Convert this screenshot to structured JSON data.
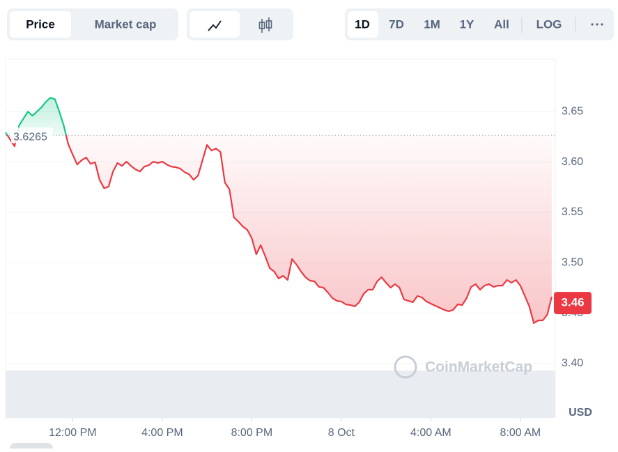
{
  "toolbar": {
    "tabs": [
      "Price",
      "Market cap"
    ],
    "ranges": [
      "1D",
      "7D",
      "1M",
      "1Y",
      "All",
      "LOG"
    ]
  },
  "chart_data": {
    "type": "line",
    "currency": "USD",
    "watermark": "CoinMarketCap",
    "reference": 3.6265,
    "current_price": 3.46,
    "up_color": "#16c784",
    "down_color": "#ea3943",
    "grid": true,
    "xlim": [
      9.0,
      33.56
    ],
    "xticks": [
      {
        "value": 12,
        "label": "12:00 PM"
      },
      {
        "value": 16,
        "label": "4:00 PM"
      },
      {
        "value": 20,
        "label": "8:00 PM"
      },
      {
        "value": 24,
        "label": "8 Oct"
      },
      {
        "value": 28,
        "label": "4:00 AM"
      },
      {
        "value": 32,
        "label": "8:00 AM"
      }
    ],
    "ylim": [
      3.346,
      3.702
    ],
    "yticks": [
      {
        "value": 3.4,
        "label": "3.40"
      },
      3.45,
      {
        "value": 3.5,
        "label": "3.50"
      },
      3.55,
      {
        "value": 3.6,
        "label": "3.60"
      },
      3.65
    ],
    "x": [
      9.0,
      9.2,
      9.4,
      9.6,
      9.8,
      10.0,
      10.2,
      10.4,
      10.6,
      10.8,
      11.0,
      11.2,
      11.4,
      11.6,
      11.8,
      12.0,
      12.2,
      12.4,
      12.6,
      12.8,
      13.0,
      13.2,
      13.4,
      13.6,
      13.8,
      14.0,
      14.2,
      14.4,
      14.6,
      14.8,
      15.0,
      15.2,
      15.4,
      15.6,
      15.8,
      16.0,
      16.2,
      16.4,
      16.6,
      16.8,
      17.0,
      17.2,
      17.4,
      17.6,
      17.8,
      18.0,
      18.2,
      18.4,
      18.6,
      18.8,
      19.0,
      19.2,
      19.4,
      19.6,
      19.8,
      20.0,
      20.2,
      20.4,
      20.6,
      20.8,
      21.0,
      21.2,
      21.4,
      21.6,
      21.8,
      22.0,
      22.2,
      22.4,
      22.6,
      22.8,
      23.0,
      23.2,
      23.4,
      23.6,
      23.8,
      24.0,
      24.2,
      24.4,
      24.6,
      24.8,
      25.0,
      25.2,
      25.4,
      25.6,
      25.8,
      26.0,
      26.2,
      26.4,
      26.6,
      26.8,
      27.0,
      27.2,
      27.4,
      27.6,
      27.8,
      28.0,
      28.2,
      28.4,
      28.6,
      28.8,
      29.0,
      29.2,
      29.4,
      29.6,
      29.8,
      30.0,
      30.2,
      30.4,
      30.6,
      30.8,
      31.0,
      31.2,
      31.4,
      31.6,
      31.8,
      32.0,
      32.2,
      32.4,
      32.6,
      32.8,
      33.0,
      33.2,
      33.4
    ],
    "series": [
      {
        "name": "Price",
        "values": [
          3.6293,
          3.6224,
          3.6155,
          3.6362,
          3.6431,
          3.65,
          3.6459,
          3.65,
          3.6541,
          3.6597,
          3.6638,
          3.6624,
          3.65,
          3.6362,
          3.6175,
          3.6072,
          3.5975,
          3.6017,
          3.6044,
          3.5982,
          3.5996,
          3.5823,
          3.574,
          3.5754,
          3.5906,
          3.5989,
          3.5961,
          3.6003,
          3.5961,
          3.5927,
          3.5906,
          3.5954,
          3.5968,
          3.6003,
          3.5989,
          3.6003,
          3.5975,
          3.5954,
          3.5948,
          3.5934,
          3.5899,
          3.5878,
          3.5823,
          3.5865,
          3.6017,
          3.6169,
          3.6113,
          3.6134,
          3.6099,
          3.5796,
          3.5727,
          3.545,
          3.5409,
          3.536,
          3.5326,
          3.5243,
          3.5084,
          3.5174,
          3.5064,
          3.4946,
          3.4912,
          3.4843,
          3.487,
          3.4829,
          3.5036,
          3.4981,
          3.4912,
          3.4856,
          3.4822,
          3.4815,
          3.476,
          3.4753,
          3.4704,
          3.4649,
          3.4622,
          3.4615,
          3.4587,
          3.458,
          3.4566,
          3.4608,
          3.4691,
          3.4732,
          3.4732,
          3.4815,
          3.4856,
          3.4801,
          3.4753,
          3.4787,
          3.4753,
          3.4635,
          3.4622,
          3.4608,
          3.467,
          3.4656,
          3.4615,
          3.4594,
          3.4573,
          3.4552,
          3.4532,
          3.4518,
          3.4532,
          3.4587,
          3.458,
          3.4649,
          3.476,
          3.4787,
          3.4732,
          3.4773,
          3.4787,
          3.476,
          3.4773,
          3.4773,
          3.4829,
          3.4801,
          3.4829,
          3.4773,
          3.467,
          3.4566,
          3.4401,
          3.4428,
          3.4428,
          3.4483,
          3.4663
        ]
      }
    ]
  }
}
